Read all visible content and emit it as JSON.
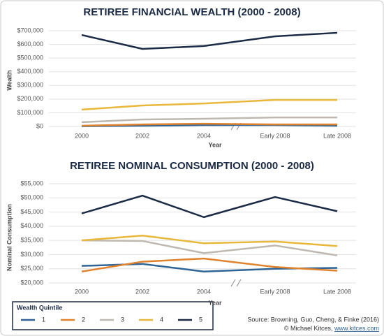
{
  "chart_data": [
    {
      "type": "line",
      "title": "RETIREE FINANCIAL WEALTH (2000 - 2008)",
      "x_label": "Year",
      "y_label": "Wealth",
      "categories": [
        "2000",
        "2002",
        "2004",
        "Early 2008",
        "Late 2008"
      ],
      "ylim": [
        0,
        700000
      ],
      "yticks": [
        {
          "value": 0,
          "label": "$0"
        },
        {
          "value": 100000,
          "label": "$100,000"
        },
        {
          "value": 200000,
          "label": "$200,000"
        },
        {
          "value": 300000,
          "label": "$300,000"
        },
        {
          "value": 400000,
          "label": "$400,000"
        },
        {
          "value": 500000,
          "label": "$500,000"
        },
        {
          "value": 600000,
          "label": "$600,000"
        },
        {
          "value": 700000,
          "label": "$700,000"
        }
      ],
      "grid": true,
      "legend_title": "Wealth Quintile",
      "series": [
        {
          "name": "1",
          "color": "#2e6496",
          "values": [
            2000,
            5000,
            10000,
            10000,
            5000
          ]
        },
        {
          "name": "2",
          "color": "#e0832f",
          "values": [
            5000,
            15000,
            20000,
            15000,
            15000
          ]
        },
        {
          "name": "3",
          "color": "#bfb8b0",
          "values": [
            31000,
            51000,
            56000,
            66000,
            66000
          ]
        },
        {
          "name": "4",
          "color": "#e8b83a",
          "values": [
            123000,
            153000,
            168000,
            194000,
            194000
          ]
        },
        {
          "name": "5",
          "color": "#1c2b45",
          "values": [
            669000,
            567000,
            588000,
            659000,
            685000
          ]
        }
      ]
    },
    {
      "type": "line",
      "title": "RETIREE NOMINAL CONSUMPTION (2000 - 2008)",
      "x_label": "Year",
      "y_label": "Nominal Consumption",
      "categories": [
        "2000",
        "2002",
        "2004",
        "Early 2008",
        "Late 2008"
      ],
      "ylim": [
        20000,
        55000
      ],
      "yticks": [
        {
          "value": 20000,
          "label": "$20,000"
        },
        {
          "value": 25000,
          "label": "$25,000"
        },
        {
          "value": 30000,
          "label": "$30,000"
        },
        {
          "value": 35000,
          "label": "$35,000"
        },
        {
          "value": 40000,
          "label": "$40,000"
        },
        {
          "value": 45000,
          "label": "$45,000"
        },
        {
          "value": 50000,
          "label": "$50,000"
        },
        {
          "value": 55000,
          "label": "$55,000"
        }
      ],
      "grid": true,
      "series": [
        {
          "color": "#2e6496",
          "values": [
            26000,
            26700,
            24000,
            25000,
            25300
          ]
        },
        {
          "color": "#e0832f",
          "values": [
            24000,
            27500,
            28600,
            25600,
            24300
          ]
        },
        {
          "color": "#bfb8b0",
          "values": [
            35000,
            34800,
            30500,
            33200,
            29700
          ]
        },
        {
          "color": "#e8b83a",
          "values": [
            35000,
            36700,
            34000,
            34600,
            33000
          ]
        },
        {
          "color": "#1c2b45",
          "values": [
            44500,
            50800,
            43200,
            50300,
            45300
          ]
        }
      ]
    }
  ],
  "source": "Source: Browning, Guo, Cheng, & Finke (2016)",
  "credit": "© Michael Kitces, ",
  "credit_link": "www.kitces.com"
}
